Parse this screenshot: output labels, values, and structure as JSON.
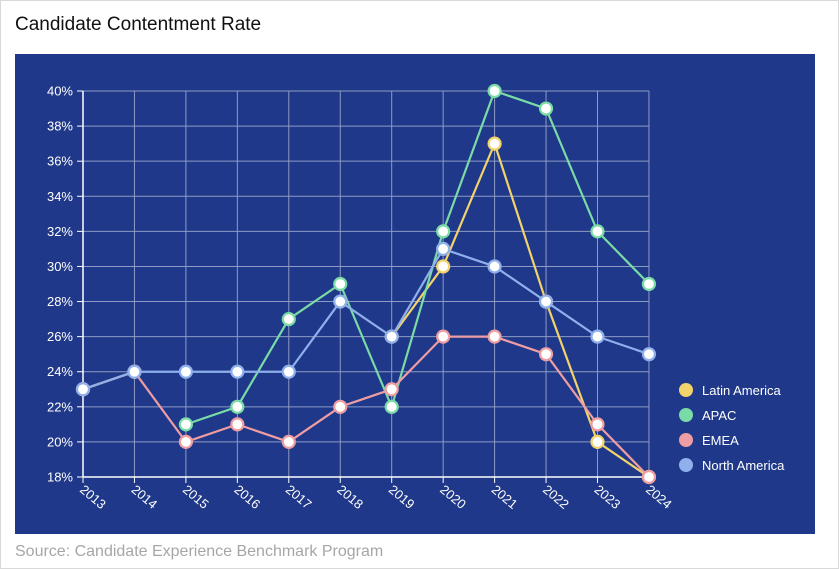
{
  "title": "Candidate Contentment Rate",
  "source": "Source: Candidate Experience Benchmark Program",
  "colors": {
    "panel": "#1f3889",
    "grid": "#8e9bc4",
    "axis": "#ffffff",
    "text": "#ffffff"
  },
  "chart_data": {
    "type": "line",
    "x": [
      "2013",
      "2014",
      "2015",
      "2016",
      "2017",
      "2018",
      "2019",
      "2020",
      "2021",
      "2022",
      "2023",
      "2024"
    ],
    "ylim": [
      18,
      40
    ],
    "yticks": [
      18,
      20,
      22,
      24,
      26,
      28,
      30,
      32,
      34,
      36,
      38,
      40
    ],
    "ytick_suffix": "%",
    "grid": true,
    "legend_position": "right",
    "series": [
      {
        "name": "Latin America",
        "color": "#f2d36b",
        "values": [
          23,
          24,
          null,
          null,
          null,
          null,
          26,
          30,
          37,
          28,
          20,
          18
        ]
      },
      {
        "name": "APAC",
        "color": "#79dba6",
        "values": [
          null,
          null,
          21,
          22,
          27,
          29,
          22,
          32,
          40,
          39,
          32,
          29
        ]
      },
      {
        "name": "EMEA",
        "color": "#ee9da3",
        "values": [
          23,
          24,
          20,
          21,
          20,
          22,
          23,
          26,
          26,
          25,
          21,
          18
        ]
      },
      {
        "name": "North America",
        "color": "#8fb0ec",
        "values": [
          23,
          24,
          24,
          24,
          24,
          28,
          26,
          31,
          30,
          28,
          26,
          25
        ]
      }
    ]
  }
}
